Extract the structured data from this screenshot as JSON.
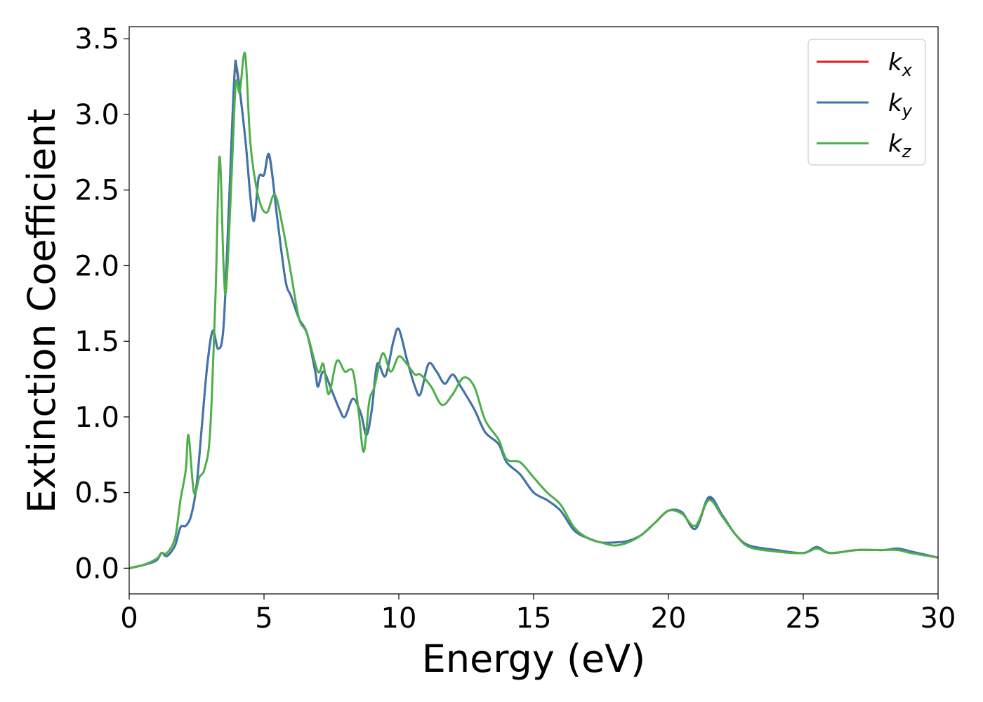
{
  "chart_data": {
    "type": "line",
    "xlabel": "Energy (eV)",
    "ylabel": "Extinction Coefficient",
    "xlim": [
      0,
      30
    ],
    "ylim": [
      -0.17,
      3.58
    ],
    "xticks": [
      0,
      5,
      10,
      15,
      20,
      25,
      30
    ],
    "xtick_labels": [
      "0",
      "5",
      "10",
      "15",
      "20",
      "25",
      "30"
    ],
    "yticks": [
      0.0,
      0.5,
      1.0,
      1.5,
      2.0,
      2.5,
      3.0,
      3.5
    ],
    "ytick_labels": [
      "0.0",
      "0.5",
      "1.0",
      "1.5",
      "2.0",
      "2.5",
      "3.0",
      "3.5"
    ],
    "grid": false,
    "legend_position": "top-right",
    "series": [
      {
        "name": "k_x",
        "label_base": "k",
        "label_sub": "x",
        "color": "#e41a1c",
        "x": [
          0,
          0.5,
          1.0,
          1.2,
          1.4,
          1.7,
          1.9,
          2.1,
          2.3,
          2.5,
          2.7,
          2.9,
          3.1,
          3.3,
          3.5,
          3.7,
          3.9,
          4.0,
          4.3,
          4.6,
          4.8,
          5.0,
          5.2,
          5.5,
          5.8,
          6.0,
          6.3,
          6.6,
          6.9,
          7.0,
          7.2,
          7.5,
          7.8,
          8.0,
          8.3,
          8.6,
          8.8,
          9.0,
          9.2,
          9.5,
          9.8,
          10.0,
          10.3,
          10.6,
          10.8,
          11.1,
          11.4,
          11.7,
          12.0,
          12.3,
          12.8,
          13.2,
          13.7,
          14.0,
          14.5,
          15.0,
          15.5,
          16.0,
          16.5,
          17.0,
          17.5,
          18.0,
          18.5,
          19.0,
          19.5,
          20.0,
          20.5,
          21.0,
          21.5,
          22.0,
          22.5,
          23.0,
          24.0,
          25.0,
          25.5,
          26.0,
          27.0,
          28.0,
          28.5,
          29.0,
          30.0
        ],
        "y": [
          0.0,
          0.02,
          0.05,
          0.1,
          0.08,
          0.15,
          0.27,
          0.28,
          0.35,
          0.55,
          0.95,
          1.35,
          1.57,
          1.45,
          1.6,
          2.4,
          3.25,
          3.28,
          2.85,
          2.3,
          2.58,
          2.6,
          2.72,
          2.3,
          1.9,
          1.8,
          1.65,
          1.55,
          1.3,
          1.2,
          1.3,
          1.18,
          1.05,
          1.0,
          1.12,
          1.02,
          0.88,
          1.05,
          1.35,
          1.27,
          1.5,
          1.58,
          1.38,
          1.2,
          1.15,
          1.35,
          1.3,
          1.22,
          1.28,
          1.2,
          1.05,
          0.9,
          0.82,
          0.7,
          0.62,
          0.5,
          0.45,
          0.38,
          0.25,
          0.2,
          0.17,
          0.17,
          0.18,
          0.22,
          0.3,
          0.38,
          0.37,
          0.26,
          0.46,
          0.35,
          0.22,
          0.15,
          0.12,
          0.1,
          0.14,
          0.1,
          0.12,
          0.12,
          0.13,
          0.11,
          0.07
        ]
      },
      {
        "name": "k_y",
        "label_base": "k",
        "label_sub": "y",
        "color": "#3b76b0",
        "x": [
          0,
          0.5,
          1.0,
          1.2,
          1.4,
          1.7,
          1.9,
          2.1,
          2.3,
          2.5,
          2.7,
          2.9,
          3.1,
          3.3,
          3.5,
          3.7,
          3.9,
          4.0,
          4.3,
          4.6,
          4.8,
          5.0,
          5.2,
          5.5,
          5.8,
          6.0,
          6.3,
          6.6,
          6.9,
          7.0,
          7.2,
          7.5,
          7.8,
          8.0,
          8.3,
          8.6,
          8.8,
          9.0,
          9.2,
          9.5,
          9.8,
          10.0,
          10.3,
          10.6,
          10.8,
          11.1,
          11.4,
          11.7,
          12.0,
          12.3,
          12.8,
          13.2,
          13.7,
          14.0,
          14.5,
          15.0,
          15.5,
          16.0,
          16.5,
          17.0,
          17.5,
          18.0,
          18.5,
          19.0,
          19.5,
          20.0,
          20.5,
          21.0,
          21.5,
          22.0,
          22.5,
          23.0,
          24.0,
          25.0,
          25.5,
          26.0,
          27.0,
          28.0,
          28.5,
          29.0,
          30.0
        ],
        "y": [
          0.0,
          0.02,
          0.05,
          0.1,
          0.08,
          0.15,
          0.27,
          0.28,
          0.35,
          0.55,
          0.95,
          1.35,
          1.57,
          1.45,
          1.6,
          2.4,
          3.25,
          3.3,
          2.85,
          2.3,
          2.58,
          2.6,
          2.73,
          2.3,
          1.9,
          1.8,
          1.65,
          1.55,
          1.3,
          1.2,
          1.3,
          1.18,
          1.05,
          1.0,
          1.12,
          1.02,
          0.88,
          1.05,
          1.35,
          1.27,
          1.5,
          1.58,
          1.38,
          1.2,
          1.15,
          1.35,
          1.3,
          1.22,
          1.28,
          1.2,
          1.05,
          0.9,
          0.82,
          0.7,
          0.62,
          0.5,
          0.45,
          0.38,
          0.25,
          0.2,
          0.17,
          0.17,
          0.18,
          0.22,
          0.3,
          0.38,
          0.37,
          0.26,
          0.47,
          0.35,
          0.22,
          0.15,
          0.12,
          0.1,
          0.14,
          0.1,
          0.12,
          0.12,
          0.13,
          0.11,
          0.07
        ]
      },
      {
        "name": "k_z",
        "label_base": "k",
        "label_sub": "z",
        "color": "#4daf4a",
        "x": [
          0,
          0.5,
          1.0,
          1.2,
          1.4,
          1.7,
          1.9,
          2.1,
          2.2,
          2.4,
          2.6,
          2.8,
          3.0,
          3.2,
          3.35,
          3.5,
          3.6,
          3.8,
          3.95,
          4.1,
          4.3,
          4.5,
          4.8,
          5.1,
          5.4,
          5.7,
          6.0,
          6.3,
          6.6,
          7.0,
          7.2,
          7.4,
          7.7,
          8.0,
          8.3,
          8.5,
          8.7,
          8.9,
          9.1,
          9.4,
          9.7,
          10.0,
          10.3,
          10.6,
          10.8,
          11.2,
          11.6,
          12.0,
          12.4,
          12.8,
          13.2,
          13.7,
          14.0,
          14.5,
          15.0,
          15.5,
          16.0,
          16.5,
          17.0,
          17.5,
          18.0,
          18.5,
          19.0,
          19.5,
          20.0,
          20.5,
          21.0,
          21.5,
          22.0,
          22.5,
          23.0,
          24.0,
          25.0,
          25.5,
          26.0,
          27.0,
          28.0,
          28.5,
          29.0,
          30.0
        ],
        "y": [
          0.0,
          0.02,
          0.06,
          0.1,
          0.1,
          0.2,
          0.45,
          0.65,
          0.88,
          0.5,
          0.6,
          0.66,
          0.9,
          1.8,
          2.72,
          2.0,
          1.85,
          2.6,
          3.2,
          3.15,
          3.4,
          2.8,
          2.45,
          2.35,
          2.47,
          2.25,
          1.95,
          1.65,
          1.55,
          1.3,
          1.35,
          1.15,
          1.37,
          1.3,
          1.3,
          1.05,
          0.77,
          1.1,
          1.2,
          1.42,
          1.3,
          1.4,
          1.35,
          1.28,
          1.28,
          1.2,
          1.08,
          1.15,
          1.26,
          1.2,
          0.98,
          0.85,
          0.72,
          0.7,
          0.6,
          0.5,
          0.42,
          0.27,
          0.2,
          0.17,
          0.15,
          0.17,
          0.22,
          0.3,
          0.38,
          0.36,
          0.28,
          0.45,
          0.34,
          0.22,
          0.14,
          0.11,
          0.1,
          0.13,
          0.1,
          0.12,
          0.12,
          0.12,
          0.1,
          0.07
        ]
      }
    ]
  }
}
